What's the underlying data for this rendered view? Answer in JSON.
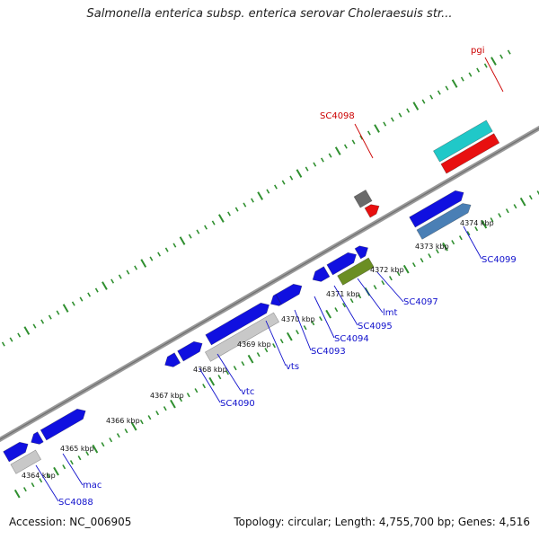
{
  "title": "Salmonella enterica subsp. enterica serovar Choleraesuis str...",
  "footer": {
    "accession": "Accession: NC_006905",
    "stats": "Topology: circular; Length: 4,755,700 bp; Genes: 4,516"
  },
  "colors": {
    "backbone": "#8a8a8a",
    "tick": "#2f8f2f",
    "label_blue": "#1010cc",
    "label_red": "#cc0000",
    "gene_blue": "#1010e0",
    "gene_grey": "#c8c8c8",
    "gene_steel": "#4a7fb5",
    "gene_olive": "#6b8e23",
    "gene_cyan": "#20c8c8",
    "gene_red": "#e81010",
    "gene_darkgrey": "#6a6a6a"
  },
  "tick_labels": [
    "4364 kbp",
    "4365 kbp",
    "4366 kbp",
    "4367 kbp",
    "4368 kbp",
    "4369 kbp",
    "4370 kbp",
    "4371 kbp",
    "4372 kbp",
    "4373 kbp",
    "4374 kbp"
  ],
  "gene_labels": [
    {
      "text": "pgi",
      "color": "red"
    },
    {
      "text": "SC4098",
      "color": "red"
    },
    {
      "text": "SC4099",
      "color": "blue"
    },
    {
      "text": "SC4097",
      "color": "blue"
    },
    {
      "text": "lmt",
      "color": "blue"
    },
    {
      "text": "SC4095",
      "color": "blue"
    },
    {
      "text": "SC4094",
      "color": "blue"
    },
    {
      "text": "SC4093",
      "color": "blue"
    },
    {
      "text": "vts",
      "color": "blue"
    },
    {
      "text": "vtc",
      "color": "blue"
    },
    {
      "text": "SC4090",
      "color": "blue"
    },
    {
      "text": "mac",
      "color": "blue"
    },
    {
      "text": "SC4088",
      "color": "blue"
    }
  ]
}
